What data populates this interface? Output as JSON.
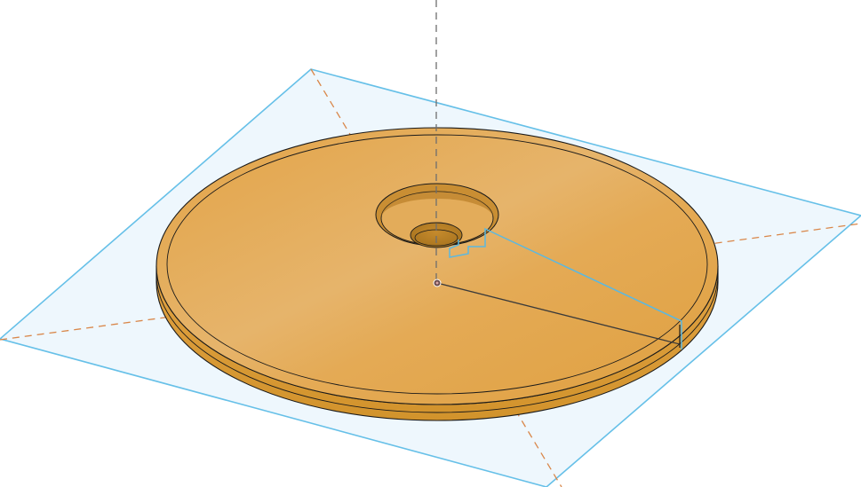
{
  "viewport": {
    "background": "#ffffff"
  },
  "colors": {
    "sketch_plane_fill": "#eef7fd",
    "sketch_plane_edge": "#66c0e8",
    "construction_axis_orange": "#d9874a",
    "construction_axis_vertical": "#6e6e6e",
    "body_top_light": "#e6b46a",
    "body_top_mid": "#e2a647",
    "body_top_dark": "#dea03f",
    "body_side": "#d4962f",
    "body_edge": "#1a1a1a",
    "selected_sketch_line": "#5bb8e0",
    "origin_point": "#6b4b4b"
  },
  "icons": {
    "origin": "origin-point-icon"
  }
}
